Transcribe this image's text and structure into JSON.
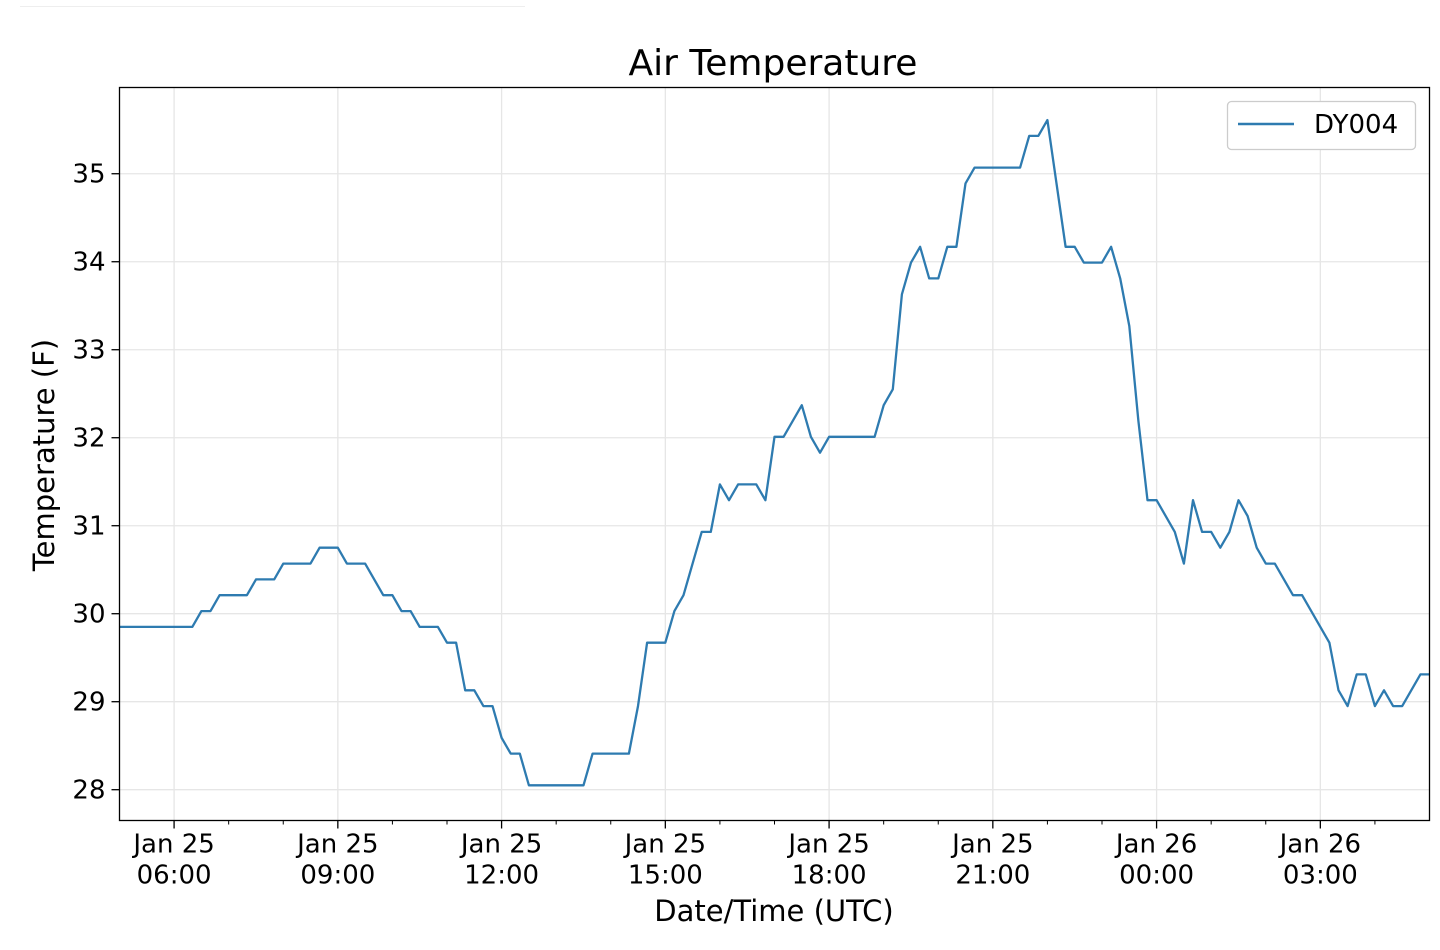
{
  "chart_data": {
    "type": "line",
    "title": "Air Temperature",
    "xlabel": "Date/Time (UTC)",
    "ylabel": "Temperature (F)",
    "xlim": [
      "2021-01-25 05:00",
      "2021-01-26 05:00"
    ],
    "ylim": [
      27.65,
      35.98
    ],
    "yticks": [
      28,
      29,
      30,
      31,
      32,
      33,
      34,
      35
    ],
    "xticks": [
      {
        "t": "2021-01-25 06:00",
        "line1": "Jan 25",
        "line2": "06:00"
      },
      {
        "t": "2021-01-25 09:00",
        "line1": "Jan 25",
        "line2": "09:00"
      },
      {
        "t": "2021-01-25 12:00",
        "line1": "Jan 25",
        "line2": "12:00"
      },
      {
        "t": "2021-01-25 15:00",
        "line1": "Jan 25",
        "line2": "15:00"
      },
      {
        "t": "2021-01-25 18:00",
        "line1": "Jan 25",
        "line2": "18:00"
      },
      {
        "t": "2021-01-25 21:00",
        "line1": "Jan 25",
        "line2": "21:00"
      },
      {
        "t": "2021-01-26 00:00",
        "line1": "Jan 26",
        "line2": "00:00"
      },
      {
        "t": "2021-01-26 03:00",
        "line1": "Jan 26",
        "line2": "03:00"
      }
    ],
    "minor_xticks": [
      "2021-01-25 07:00",
      "2021-01-25 08:00",
      "2021-01-25 10:00",
      "2021-01-25 11:00",
      "2021-01-25 13:00",
      "2021-01-25 14:00",
      "2021-01-25 16:00",
      "2021-01-25 17:00",
      "2021-01-25 19:00",
      "2021-01-25 20:00",
      "2021-01-25 22:00",
      "2021-01-25 23:00",
      "2021-01-26 01:00",
      "2021-01-26 02:00",
      "2021-01-26 04:00"
    ],
    "grid": true,
    "legend_position": "top-right",
    "series": [
      {
        "name": "DY004",
        "color": "#2e7bb0",
        "points": [
          [
            "2021-01-25 05:00",
            29.85
          ],
          [
            "2021-01-25 06:20",
            29.85
          ],
          [
            "2021-01-25 06:30",
            30.03
          ],
          [
            "2021-01-25 06:40",
            30.03
          ],
          [
            "2021-01-25 06:50",
            30.21
          ],
          [
            "2021-01-25 07:20",
            30.21
          ],
          [
            "2021-01-25 07:30",
            30.39
          ],
          [
            "2021-01-25 07:50",
            30.39
          ],
          [
            "2021-01-25 08:00",
            30.57
          ],
          [
            "2021-01-25 08:30",
            30.57
          ],
          [
            "2021-01-25 08:40",
            30.75
          ],
          [
            "2021-01-25 09:00",
            30.75
          ],
          [
            "2021-01-25 09:10",
            30.57
          ],
          [
            "2021-01-25 09:30",
            30.57
          ],
          [
            "2021-01-25 09:50",
            30.21
          ],
          [
            "2021-01-25 10:00",
            30.21
          ],
          [
            "2021-01-25 10:10",
            30.03
          ],
          [
            "2021-01-25 10:20",
            30.03
          ],
          [
            "2021-01-25 10:30",
            29.85
          ],
          [
            "2021-01-25 10:50",
            29.85
          ],
          [
            "2021-01-25 11:00",
            29.67
          ],
          [
            "2021-01-25 11:10",
            29.67
          ],
          [
            "2021-01-25 11:20",
            29.13
          ],
          [
            "2021-01-25 11:30",
            29.13
          ],
          [
            "2021-01-25 11:40",
            28.95
          ],
          [
            "2021-01-25 11:50",
            28.95
          ],
          [
            "2021-01-25 12:00",
            28.59
          ],
          [
            "2021-01-25 12:10",
            28.41
          ],
          [
            "2021-01-25 12:20",
            28.41
          ],
          [
            "2021-01-25 12:30",
            28.05
          ],
          [
            "2021-01-25 13:30",
            28.05
          ],
          [
            "2021-01-25 13:40",
            28.41
          ],
          [
            "2021-01-25 14:20",
            28.41
          ],
          [
            "2021-01-25 14:30",
            28.95
          ],
          [
            "2021-01-25 14:40",
            29.67
          ],
          [
            "2021-01-25 15:00",
            29.67
          ],
          [
            "2021-01-25 15:10",
            30.03
          ],
          [
            "2021-01-25 15:20",
            30.21
          ],
          [
            "2021-01-25 15:40",
            30.93
          ],
          [
            "2021-01-25 15:50",
            30.93
          ],
          [
            "2021-01-25 16:00",
            31.47
          ],
          [
            "2021-01-25 16:10",
            31.29
          ],
          [
            "2021-01-25 16:20",
            31.47
          ],
          [
            "2021-01-25 16:40",
            31.47
          ],
          [
            "2021-01-25 16:50",
            31.29
          ],
          [
            "2021-01-25 17:00",
            32.01
          ],
          [
            "2021-01-25 17:10",
            32.01
          ],
          [
            "2021-01-25 17:30",
            32.37
          ],
          [
            "2021-01-25 17:40",
            32.01
          ],
          [
            "2021-01-25 17:50",
            31.83
          ],
          [
            "2021-01-25 18:00",
            32.01
          ],
          [
            "2021-01-25 18:50",
            32.01
          ],
          [
            "2021-01-25 19:00",
            32.37
          ],
          [
            "2021-01-25 19:10",
            32.55
          ],
          [
            "2021-01-25 19:20",
            33.63
          ],
          [
            "2021-01-25 19:30",
            33.99
          ],
          [
            "2021-01-25 19:40",
            34.17
          ],
          [
            "2021-01-25 19:50",
            33.81
          ],
          [
            "2021-01-25 20:00",
            33.81
          ],
          [
            "2021-01-25 20:10",
            34.17
          ],
          [
            "2021-01-25 20:20",
            34.17
          ],
          [
            "2021-01-25 20:30",
            34.89
          ],
          [
            "2021-01-25 20:40",
            35.07
          ],
          [
            "2021-01-25 21:30",
            35.07
          ],
          [
            "2021-01-25 21:40",
            35.43
          ],
          [
            "2021-01-25 21:50",
            35.43
          ],
          [
            "2021-01-25 22:00",
            35.61
          ],
          [
            "2021-01-25 22:10",
            34.89
          ],
          [
            "2021-01-25 22:20",
            34.17
          ],
          [
            "2021-01-25 22:30",
            34.17
          ],
          [
            "2021-01-25 22:40",
            33.99
          ],
          [
            "2021-01-25 23:00",
            33.99
          ],
          [
            "2021-01-25 23:10",
            34.17
          ],
          [
            "2021-01-25 23:20",
            33.81
          ],
          [
            "2021-01-25 23:30",
            33.27
          ],
          [
            "2021-01-25 23:40",
            32.19
          ],
          [
            "2021-01-25 23:50",
            31.29
          ],
          [
            "2021-01-26 00:00",
            31.29
          ],
          [
            "2021-01-26 00:20",
            30.93
          ],
          [
            "2021-01-26 00:30",
            30.57
          ],
          [
            "2021-01-26 00:40",
            31.29
          ],
          [
            "2021-01-26 00:50",
            30.93
          ],
          [
            "2021-01-26 01:00",
            30.93
          ],
          [
            "2021-01-26 01:10",
            30.75
          ],
          [
            "2021-01-26 01:20",
            30.93
          ],
          [
            "2021-01-26 01:30",
            31.29
          ],
          [
            "2021-01-26 01:40",
            31.11
          ],
          [
            "2021-01-26 01:50",
            30.75
          ],
          [
            "2021-01-26 02:00",
            30.57
          ],
          [
            "2021-01-26 02:10",
            30.57
          ],
          [
            "2021-01-26 02:30",
            30.21
          ],
          [
            "2021-01-26 02:40",
            30.21
          ],
          [
            "2021-01-26 03:10",
            29.67
          ],
          [
            "2021-01-26 03:20",
            29.13
          ],
          [
            "2021-01-26 03:30",
            28.95
          ],
          [
            "2021-01-26 03:40",
            29.31
          ],
          [
            "2021-01-26 03:50",
            29.31
          ],
          [
            "2021-01-26 04:00",
            28.95
          ],
          [
            "2021-01-26 04:10",
            29.13
          ],
          [
            "2021-01-26 04:20",
            28.95
          ],
          [
            "2021-01-26 04:30",
            28.95
          ],
          [
            "2021-01-26 04:50",
            29.31
          ],
          [
            "2021-01-26 05:00",
            29.31
          ]
        ]
      }
    ]
  }
}
